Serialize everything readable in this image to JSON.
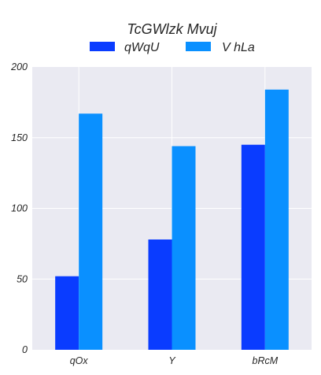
{
  "chart_data": {
    "type": "bar",
    "title": "TcGWlzk Mvuj",
    "xlabel": "",
    "ylabel": "",
    "categories": [
      "qOx",
      "Y",
      "bRcM"
    ],
    "series": [
      {
        "name": "qWqU",
        "values": [
          52,
          78,
          145
        ],
        "color": "#0a3cff"
      },
      {
        "name": "V hLa",
        "values": [
          167,
          144,
          184
        ],
        "color": "#0a90ff"
      }
    ],
    "ylim": [
      0,
      200
    ],
    "yticks": [
      0,
      50,
      100,
      150,
      200
    ],
    "grid": true,
    "legend_position": "top-center",
    "background_color": "#eaeaf2",
    "grid_color": "#ffffff"
  }
}
